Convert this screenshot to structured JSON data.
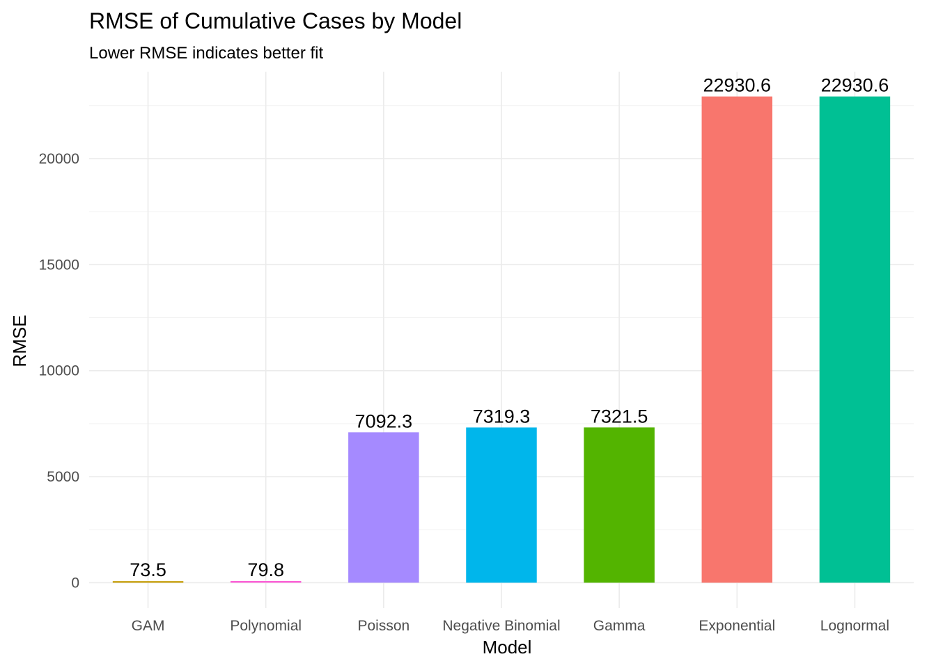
{
  "chart_data": {
    "type": "bar",
    "title": "RMSE of Cumulative Cases by Model",
    "subtitle": "Lower RMSE indicates better fit",
    "xlabel": "Model",
    "ylabel": "RMSE",
    "categories": [
      "GAM",
      "Polynomial",
      "Poisson",
      "Negative Binomial",
      "Gamma",
      "Exponential",
      "Lognormal"
    ],
    "values": [
      73.5,
      79.8,
      7092.3,
      7319.3,
      7321.5,
      22930.6,
      22930.6
    ],
    "labels": [
      "73.5",
      "79.8",
      "7092.3",
      "7319.3",
      "7321.5",
      "22930.6",
      "22930.6"
    ],
    "colors": [
      "#C49A00",
      "#FB61D7",
      "#A58AFF",
      "#00B6EB",
      "#53B400",
      "#F8766D",
      "#00C094"
    ],
    "ylim": [
      -1200,
      24100
    ],
    "yticks": [
      0,
      5000,
      10000,
      15000,
      20000
    ],
    "yticklabels": [
      "0",
      "5000",
      "10000",
      "15000",
      "20000"
    ],
    "grid": true,
    "legend": "none"
  }
}
